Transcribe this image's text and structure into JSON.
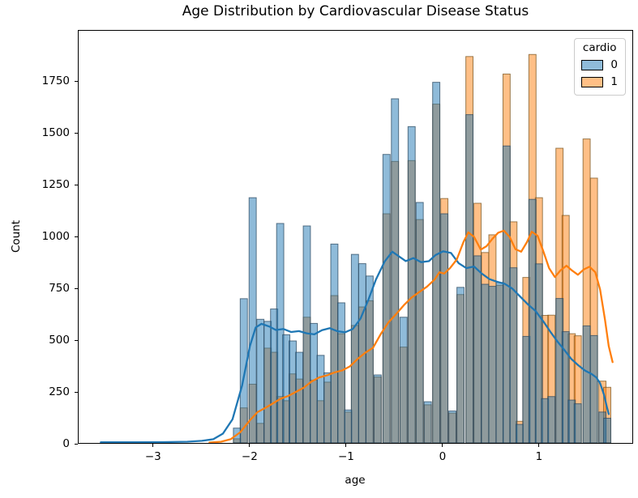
{
  "chart_data": {
    "type": "histogram",
    "title": "Age Distribution by Cardiovascular Disease Status",
    "xlabel": "age",
    "ylabel": "Count",
    "xlim": [
      -3.78,
      1.975
    ],
    "ylim": [
      0,
      2000
    ],
    "grid": false,
    "x_ticks": [
      {
        "label": "−3",
        "value": -3
      },
      {
        "label": "−2",
        "value": -2
      },
      {
        "label": "−1",
        "value": -1
      },
      {
        "label": "0",
        "value": 0
      },
      {
        "label": "1",
        "value": 1
      }
    ],
    "y_ticks": [
      {
        "label": "0",
        "value": 0
      },
      {
        "label": "250",
        "value": 250
      },
      {
        "label": "500",
        "value": 500
      },
      {
        "label": "750",
        "value": 750
      },
      {
        "label": "1000",
        "value": 1000
      },
      {
        "label": "1250",
        "value": 1250
      },
      {
        "label": "1500",
        "value": 1500
      },
      {
        "label": "1750",
        "value": 1750
      }
    ],
    "bin_width": 0.0748,
    "bin_centers": [
      -2.134,
      -2.063,
      -1.971,
      -1.891,
      -1.815,
      -1.748,
      -1.685,
      -1.622,
      -1.555,
      -1.487,
      -1.408,
      -1.336,
      -1.265,
      -1.193,
      -1.122,
      -1.05,
      -0.979,
      -0.908,
      -0.832,
      -0.756,
      -0.672,
      -0.58,
      -0.492,
      -0.403,
      -0.319,
      -0.235,
      -0.151,
      -0.063,
      0.021,
      0.105,
      0.189,
      0.282,
      0.366,
      0.445,
      0.521,
      0.597,
      0.668,
      0.739,
      0.803,
      0.874,
      0.937,
      1.004,
      1.067,
      1.134,
      1.218,
      1.282,
      1.345,
      1.408,
      1.5,
      1.576,
      1.664,
      1.714
    ],
    "series": [
      {
        "name": "0",
        "color": "#1f77b4",
        "edge_color": "#2c4a62",
        "fill_opacity": 0.5,
        "values": [
          72,
          700,
          1190,
          600,
          590,
          650,
          1065,
          525,
          495,
          440,
          1053,
          580,
          425,
          340,
          965,
          680,
          160,
          915,
          870,
          810,
          330,
          1400,
          1670,
          610,
          1535,
          1167,
          200,
          1750,
          1112,
          155,
          755,
          1593,
          908,
          770,
          760,
          779,
          1441,
          850,
          90,
          517,
          1182,
          869,
          215,
          225,
          701,
          540,
          208,
          190,
          568,
          521,
          150,
          120
        ]
      },
      {
        "name": "1",
        "color": "#ff7f0e",
        "edge_color": "#7a5520",
        "fill_opacity": 0.5,
        "values": [
          20,
          170,
          285,
          95,
          460,
          440,
          225,
          205,
          335,
          310,
          610,
          305,
          205,
          295,
          715,
          530,
          150,
          570,
          660,
          690,
          320,
          1112,
          1366,
          465,
          1370,
          1084,
          185,
          1644,
          1186,
          145,
          720,
          1875,
          1163,
          924,
          1010,
          765,
          1790,
          1073,
          105,
          803,
          1885,
          1190,
          619,
          620,
          1430,
          1104,
          530,
          520,
          1475,
          1285,
          300,
          270
        ]
      }
    ],
    "kde": [
      {
        "name": "0",
        "color": "#1f77b4",
        "points": [
          [
            -3.55,
            3
          ],
          [
            -3.2,
            3
          ],
          [
            -2.9,
            4
          ],
          [
            -2.65,
            6
          ],
          [
            -2.5,
            10
          ],
          [
            -2.38,
            18
          ],
          [
            -2.28,
            45
          ],
          [
            -2.18,
            115
          ],
          [
            -2.08,
            280
          ],
          [
            -2.0,
            470
          ],
          [
            -1.94,
            560
          ],
          [
            -1.88,
            578
          ],
          [
            -1.8,
            565
          ],
          [
            -1.73,
            548
          ],
          [
            -1.65,
            553
          ],
          [
            -1.57,
            538
          ],
          [
            -1.49,
            543
          ],
          [
            -1.41,
            532
          ],
          [
            -1.33,
            527
          ],
          [
            -1.25,
            547
          ],
          [
            -1.17,
            557
          ],
          [
            -1.09,
            542
          ],
          [
            -1.01,
            537
          ],
          [
            -0.93,
            553
          ],
          [
            -0.85,
            603
          ],
          [
            -0.77,
            693
          ],
          [
            -0.69,
            793
          ],
          [
            -0.6,
            880
          ],
          [
            -0.52,
            928
          ],
          [
            -0.45,
            905
          ],
          [
            -0.38,
            882
          ],
          [
            -0.3,
            897
          ],
          [
            -0.22,
            877
          ],
          [
            -0.14,
            882
          ],
          [
            -0.07,
            912
          ],
          [
            0.01,
            930
          ],
          [
            0.09,
            922
          ],
          [
            0.17,
            872
          ],
          [
            0.25,
            848
          ],
          [
            0.33,
            856
          ],
          [
            0.41,
            822
          ],
          [
            0.49,
            795
          ],
          [
            0.57,
            782
          ],
          [
            0.65,
            772
          ],
          [
            0.73,
            748
          ],
          [
            0.81,
            710
          ],
          [
            0.89,
            672
          ],
          [
            0.97,
            640
          ],
          [
            1.05,
            590
          ],
          [
            1.13,
            535
          ],
          [
            1.2,
            490
          ],
          [
            1.27,
            450
          ],
          [
            1.34,
            408
          ],
          [
            1.41,
            378
          ],
          [
            1.48,
            352
          ],
          [
            1.55,
            335
          ],
          [
            1.6,
            318
          ],
          [
            1.64,
            290
          ],
          [
            1.68,
            235
          ],
          [
            1.71,
            175
          ],
          [
            1.73,
            140
          ]
        ]
      },
      {
        "name": "1",
        "color": "#ff7f0e",
        "points": [
          [
            -2.42,
            2
          ],
          [
            -2.3,
            6
          ],
          [
            -2.2,
            18
          ],
          [
            -2.1,
            52
          ],
          [
            -2.0,
            110
          ],
          [
            -1.92,
            150
          ],
          [
            -1.84,
            170
          ],
          [
            -1.76,
            192
          ],
          [
            -1.68,
            215
          ],
          [
            -1.6,
            228
          ],
          [
            -1.52,
            248
          ],
          [
            -1.44,
            268
          ],
          [
            -1.36,
            298
          ],
          [
            -1.28,
            318
          ],
          [
            -1.2,
            328
          ],
          [
            -1.12,
            342
          ],
          [
            -1.04,
            352
          ],
          [
            -0.96,
            372
          ],
          [
            -0.88,
            408
          ],
          [
            -0.8,
            438
          ],
          [
            -0.72,
            462
          ],
          [
            -0.64,
            528
          ],
          [
            -0.56,
            585
          ],
          [
            -0.48,
            625
          ],
          [
            -0.4,
            668
          ],
          [
            -0.32,
            705
          ],
          [
            -0.24,
            732
          ],
          [
            -0.16,
            758
          ],
          [
            -0.08,
            793
          ],
          [
            -0.03,
            828
          ],
          [
            0.02,
            822
          ],
          [
            0.08,
            848
          ],
          [
            0.15,
            890
          ],
          [
            0.22,
            975
          ],
          [
            0.27,
            1022
          ],
          [
            0.33,
            1000
          ],
          [
            0.4,
            938
          ],
          [
            0.46,
            955
          ],
          [
            0.52,
            990
          ],
          [
            0.58,
            1020
          ],
          [
            0.64,
            1030
          ],
          [
            0.7,
            1000
          ],
          [
            0.76,
            940
          ],
          [
            0.82,
            928
          ],
          [
            0.88,
            975
          ],
          [
            0.93,
            1025
          ],
          [
            0.99,
            1005
          ],
          [
            1.05,
            930
          ],
          [
            1.11,
            848
          ],
          [
            1.17,
            805
          ],
          [
            1.23,
            838
          ],
          [
            1.29,
            860
          ],
          [
            1.35,
            836
          ],
          [
            1.41,
            816
          ],
          [
            1.47,
            842
          ],
          [
            1.53,
            855
          ],
          [
            1.59,
            828
          ],
          [
            1.64,
            745
          ],
          [
            1.69,
            600
          ],
          [
            1.73,
            470
          ],
          [
            1.77,
            392
          ]
        ]
      }
    ],
    "legend": {
      "title": "cardio",
      "position": "upper right",
      "entries": [
        {
          "label": "0",
          "color": "#1f77b4"
        },
        {
          "label": "1",
          "color": "#ff7f0e"
        }
      ]
    }
  }
}
